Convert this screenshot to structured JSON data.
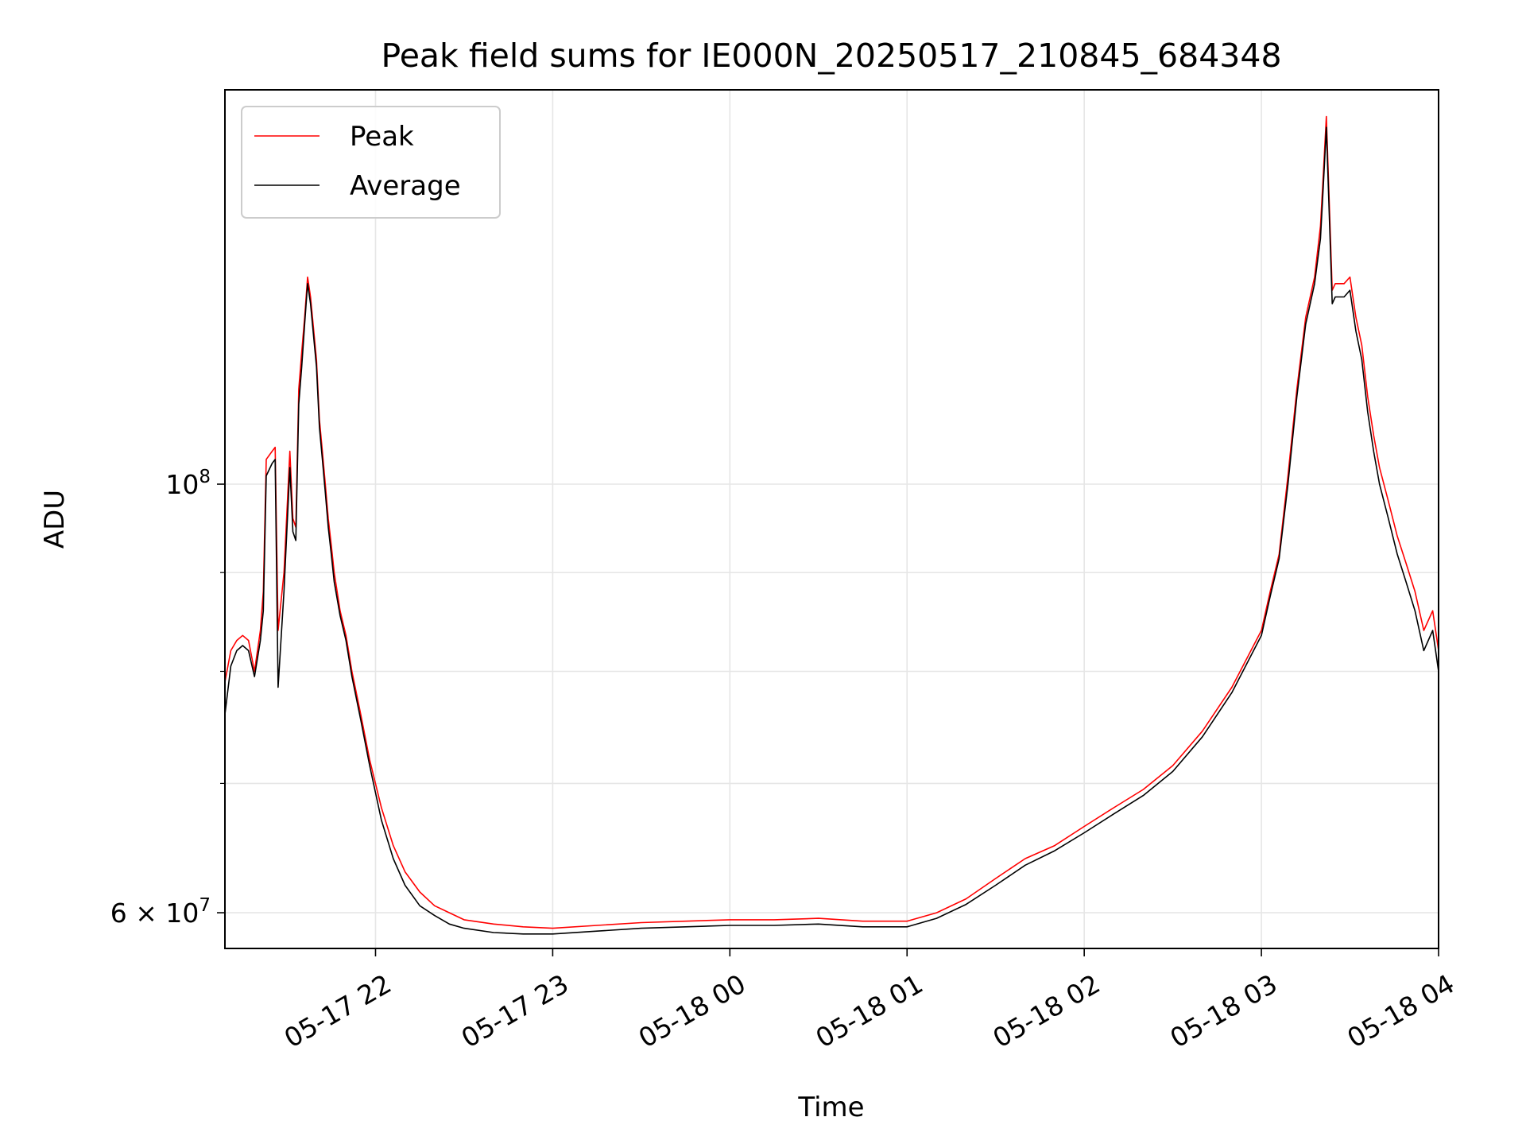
{
  "chart_data": {
    "type": "line",
    "title": "Peak field sums for IE000N_20250517_210845_684348",
    "xlabel": "Time",
    "ylabel": "ADU",
    "yscale": "log",
    "xlim": [
      "2025-05-17 21:09",
      "2025-05-18 04:00"
    ],
    "ylim": [
      57500000,
      160000000
    ],
    "grid": true,
    "legend_position": "upper-left",
    "x_ticks": [
      "05-17 22",
      "05-17 23",
      "05-18 00",
      "05-18 01",
      "05-18 02",
      "05-18 03",
      "05-18 04"
    ],
    "y_tick_labels": [
      "10^8",
      "6 × 10^7"
    ],
    "y_major_ticks": [
      100000000,
      60000000
    ],
    "y_minor_ticks": [
      70000000,
      80000000,
      90000000
    ],
    "series": [
      {
        "name": "Peak",
        "color": "#ff0000",
        "x": [
          "2025-05-17 21:09",
          "2025-05-17 21:11",
          "2025-05-17 21:13",
          "2025-05-17 21:15",
          "2025-05-17 21:17",
          "2025-05-17 21:19",
          "2025-05-17 21:21",
          "2025-05-17 21:22",
          "2025-05-17 21:23",
          "2025-05-17 21:25",
          "2025-05-17 21:26",
          "2025-05-17 21:27",
          "2025-05-17 21:29",
          "2025-05-17 21:31",
          "2025-05-17 21:32",
          "2025-05-17 21:33",
          "2025-05-17 21:34",
          "2025-05-17 21:35",
          "2025-05-17 21:36",
          "2025-05-17 21:37",
          "2025-05-17 21:38",
          "2025-05-17 21:40",
          "2025-05-17 21:41",
          "2025-05-17 21:42",
          "2025-05-17 21:43",
          "2025-05-17 21:44",
          "2025-05-17 21:45",
          "2025-05-17 21:46",
          "2025-05-17 21:48",
          "2025-05-17 21:50",
          "2025-05-17 21:52",
          "2025-05-17 21:55",
          "2025-05-17 21:58",
          "2025-05-17 22:02",
          "2025-05-17 22:06",
          "2025-05-17 22:10",
          "2025-05-17 22:15",
          "2025-05-17 22:20",
          "2025-05-17 22:25",
          "2025-05-17 22:30",
          "2025-05-17 22:40",
          "2025-05-17 22:50",
          "2025-05-17 23:00",
          "2025-05-17 23:15",
          "2025-05-17 23:30",
          "2025-05-17 23:45",
          "2025-05-18 00:00",
          "2025-05-18 00:15",
          "2025-05-18 00:30",
          "2025-05-18 00:45",
          "2025-05-18 01:00",
          "2025-05-18 01:10",
          "2025-05-18 01:20",
          "2025-05-18 01:30",
          "2025-05-18 01:40",
          "2025-05-18 01:50",
          "2025-05-18 02:00",
          "2025-05-18 02:10",
          "2025-05-18 02:20",
          "2025-05-18 02:30",
          "2025-05-18 02:40",
          "2025-05-18 02:50",
          "2025-05-18 03:00",
          "2025-05-18 03:03",
          "2025-05-18 03:06",
          "2025-05-18 03:09",
          "2025-05-18 03:12",
          "2025-05-18 03:15",
          "2025-05-18 03:18",
          "2025-05-18 03:20",
          "2025-05-18 03:21",
          "2025-05-18 03:22",
          "2025-05-18 03:24",
          "2025-05-18 03:25",
          "2025-05-18 03:28",
          "2025-05-18 03:30",
          "2025-05-18 03:32",
          "2025-05-18 03:34",
          "2025-05-18 03:36",
          "2025-05-18 03:38",
          "2025-05-18 03:40",
          "2025-05-18 03:43",
          "2025-05-18 03:46",
          "2025-05-18 03:49",
          "2025-05-18 03:52",
          "2025-05-18 03:55",
          "2025-05-18 03:58",
          "2025-05-18 04:00"
        ],
        "y": [
          79000000,
          82000000,
          83000000,
          83500000,
          83000000,
          80000000,
          84000000,
          88000000,
          103000000,
          104000000,
          104500000,
          84000000,
          90000000,
          104000000,
          96000000,
          95000000,
          112000000,
          117000000,
          122000000,
          128000000,
          125000000,
          116000000,
          108000000,
          104000000,
          100000000,
          96000000,
          93000000,
          90000000,
          86000000,
          83500000,
          80000000,
          76000000,
          72000000,
          68000000,
          65000000,
          63000000,
          61500000,
          60500000,
          60000000,
          59500000,
          59200000,
          59000000,
          58900000,
          59100000,
          59300000,
          59400000,
          59500000,
          59500000,
          59600000,
          59400000,
          59400000,
          60000000,
          61000000,
          62500000,
          64000000,
          65000000,
          66500000,
          68000000,
          69500000,
          71500000,
          74500000,
          78500000,
          84000000,
          88000000,
          92000000,
          101000000,
          112000000,
          122000000,
          128000000,
          136000000,
          145000000,
          155000000,
          126000000,
          127000000,
          127000000,
          128000000,
          122000000,
          118000000,
          111000000,
          106000000,
          102000000,
          98000000,
          94000000,
          91000000,
          88000000,
          84000000,
          86000000,
          82000000
        ]
      },
      {
        "name": "Average",
        "color": "#000000",
        "x": [
          "2025-05-17 21:09",
          "2025-05-17 21:11",
          "2025-05-17 21:13",
          "2025-05-17 21:15",
          "2025-05-17 21:17",
          "2025-05-17 21:19",
          "2025-05-17 21:21",
          "2025-05-17 21:22",
          "2025-05-17 21:23",
          "2025-05-17 21:25",
          "2025-05-17 21:26",
          "2025-05-17 21:27",
          "2025-05-17 21:29",
          "2025-05-17 21:31",
          "2025-05-17 21:32",
          "2025-05-17 21:33",
          "2025-05-17 21:34",
          "2025-05-17 21:35",
          "2025-05-17 21:36",
          "2025-05-17 21:37",
          "2025-05-17 21:38",
          "2025-05-17 21:40",
          "2025-05-17 21:41",
          "2025-05-17 21:42",
          "2025-05-17 21:43",
          "2025-05-17 21:44",
          "2025-05-17 21:45",
          "2025-05-17 21:46",
          "2025-05-17 21:48",
          "2025-05-17 21:50",
          "2025-05-17 21:52",
          "2025-05-17 21:55",
          "2025-05-17 21:58",
          "2025-05-17 22:02",
          "2025-05-17 22:06",
          "2025-05-17 22:10",
          "2025-05-17 22:15",
          "2025-05-17 22:20",
          "2025-05-17 22:25",
          "2025-05-17 22:30",
          "2025-05-17 22:40",
          "2025-05-17 22:50",
          "2025-05-17 23:00",
          "2025-05-17 23:15",
          "2025-05-17 23:30",
          "2025-05-17 23:45",
          "2025-05-18 00:00",
          "2025-05-18 00:15",
          "2025-05-18 00:30",
          "2025-05-18 00:45",
          "2025-05-18 01:00",
          "2025-05-18 01:10",
          "2025-05-18 01:20",
          "2025-05-18 01:30",
          "2025-05-18 01:40",
          "2025-05-18 01:50",
          "2025-05-18 02:00",
          "2025-05-18 02:10",
          "2025-05-18 02:20",
          "2025-05-18 02:30",
          "2025-05-18 02:40",
          "2025-05-18 02:50",
          "2025-05-18 03:00",
          "2025-05-18 03:03",
          "2025-05-18 03:06",
          "2025-05-18 03:09",
          "2025-05-18 03:12",
          "2025-05-18 03:15",
          "2025-05-18 03:18",
          "2025-05-18 03:20",
          "2025-05-18 03:21",
          "2025-05-18 03:22",
          "2025-05-18 03:24",
          "2025-05-18 03:25",
          "2025-05-18 03:28",
          "2025-05-18 03:30",
          "2025-05-18 03:32",
          "2025-05-18 03:34",
          "2025-05-18 03:36",
          "2025-05-18 03:38",
          "2025-05-18 03:40",
          "2025-05-18 03:43",
          "2025-05-18 03:46",
          "2025-05-18 03:49",
          "2025-05-18 03:52",
          "2025-05-18 03:55",
          "2025-05-18 03:58",
          "2025-05-18 04:00"
        ],
        "y": [
          76000000,
          80500000,
          82000000,
          82500000,
          82000000,
          79500000,
          83000000,
          86000000,
          101000000,
          102500000,
          103000000,
          78500000,
          88000000,
          102000000,
          94500000,
          93500000,
          110000000,
          115000000,
          121000000,
          127000000,
          124000000,
          115000000,
          107000000,
          103000000,
          99000000,
          95000000,
          92000000,
          89000000,
          85500000,
          83000000,
          79500000,
          75500000,
          71500000,
          67000000,
          64000000,
          62000000,
          60500000,
          59800000,
          59200000,
          58900000,
          58600000,
          58500000,
          58500000,
          58700000,
          58900000,
          59000000,
          59100000,
          59100000,
          59200000,
          59000000,
          59000000,
          59600000,
          60600000,
          62000000,
          63500000,
          64600000,
          66000000,
          67500000,
          69000000,
          71000000,
          74000000,
          78000000,
          83500000,
          87500000,
          91500000,
          100000000,
          111000000,
          121000000,
          127000000,
          134000000,
          143000000,
          153000000,
          124000000,
          125000000,
          125000000,
          126000000,
          120000000,
          116000000,
          109000000,
          104000000,
          100000000,
          96000000,
          92000000,
          89000000,
          86000000,
          82000000,
          84000000,
          80000000
        ]
      }
    ]
  }
}
